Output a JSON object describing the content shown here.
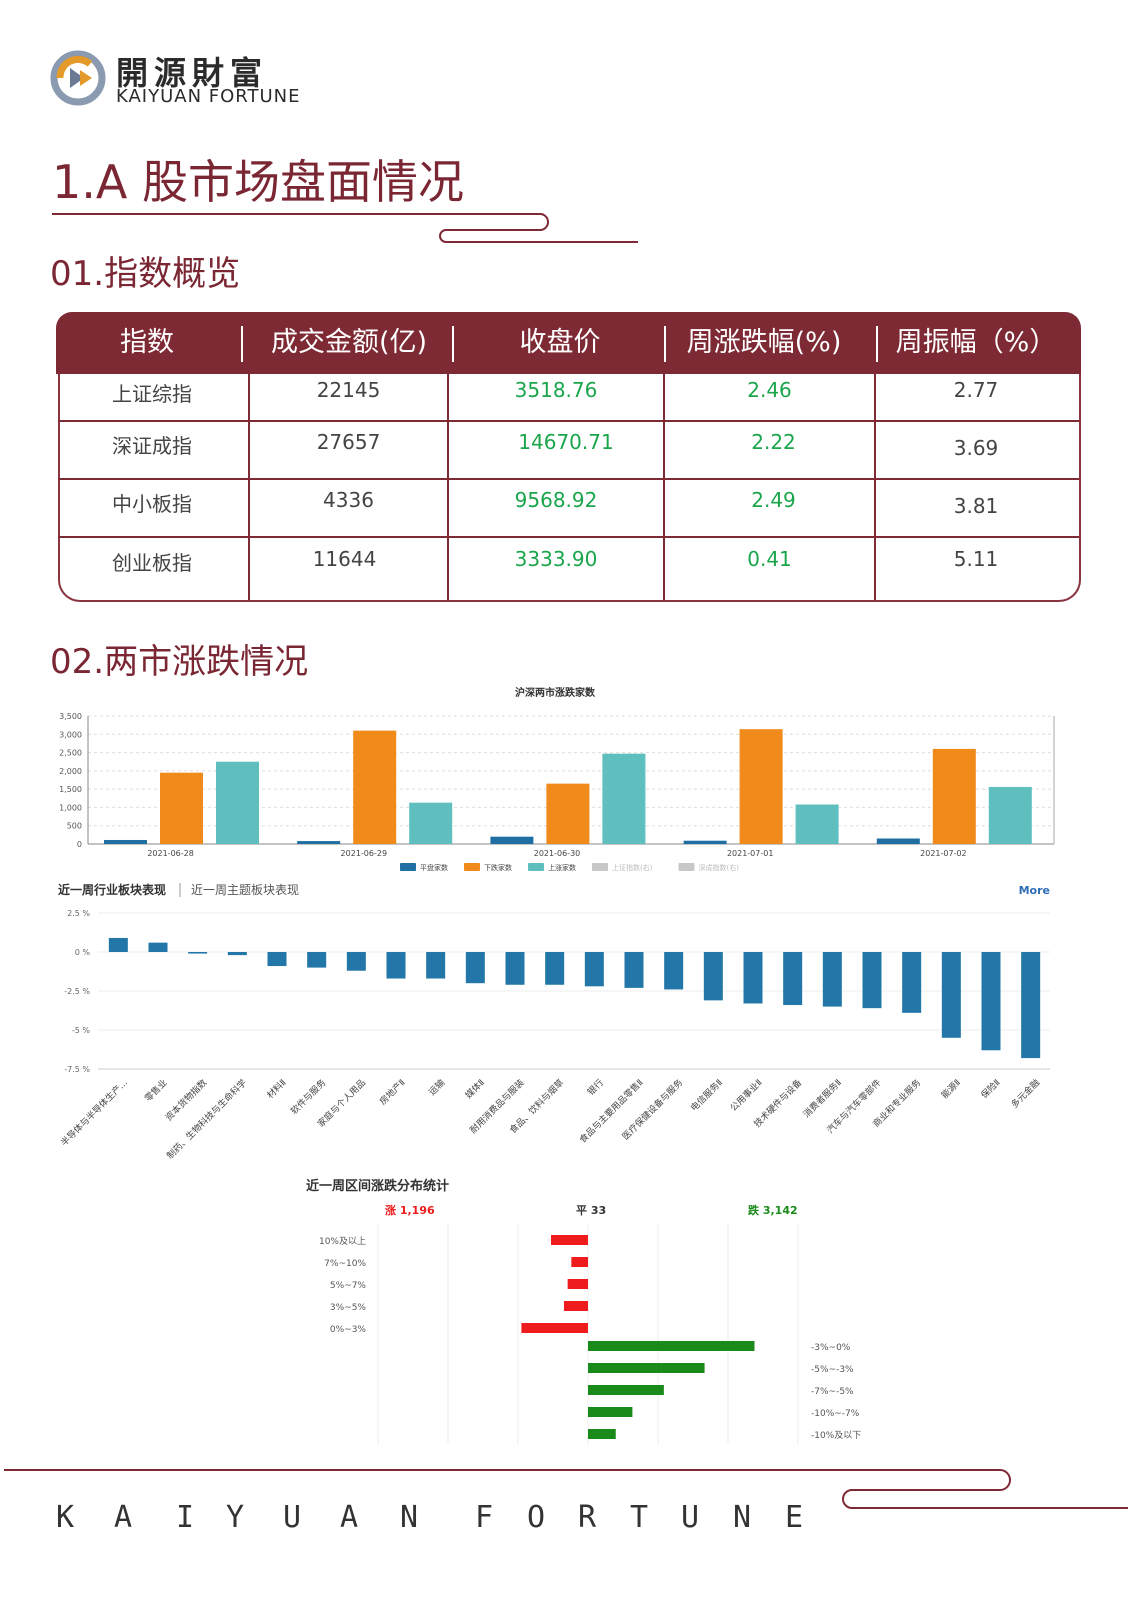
{
  "brand": {
    "name_cn": "開源財富",
    "name_en": "KAIYUAN FORTUNE",
    "footer_letters": [
      "K",
      "A",
      "I",
      "Y",
      "U",
      "A",
      "N",
      "F",
      "O",
      "R",
      "T",
      "U",
      "N",
      "E"
    ]
  },
  "section_title": "1.A 股市场盘面情况",
  "index_overview": {
    "title": "01.指数概览",
    "headers": [
      "指数",
      "成交金额(亿)",
      "收盘价",
      "周涨跌幅(%)",
      "周振幅（%）"
    ],
    "rows": [
      [
        "上证综指",
        "22145",
        "3518.76",
        "2.46",
        "2.77"
      ],
      [
        "深证成指",
        "27657",
        "14670.71",
        "2.22",
        "3.69"
      ],
      [
        "中小板指",
        "4336",
        "9568.92",
        "2.49",
        "3.81"
      ],
      [
        "创业板指",
        "11644",
        "3333.90",
        "0.41",
        "5.11"
      ]
    ]
  },
  "market_section_title": "02.两市涨跌情况",
  "colors": {
    "brand": "#7e2a35",
    "flat": "#1f6fa3",
    "down": "#f08a1b",
    "up": "#5fbfbf",
    "red": "#ee1c1c",
    "green": "#1a8a1a",
    "ind": "#2277a8"
  },
  "chart_data": [
    {
      "type": "bar",
      "title": "沪深两市涨跌家数",
      "categories": [
        "2021-06-28",
        "2021-06-29",
        "2021-06-30",
        "2021-07-01",
        "2021-07-02"
      ],
      "series": [
        {
          "name": "平盘家数",
          "values": [
            110,
            80,
            200,
            90,
            150
          ]
        },
        {
          "name": "下跌家数",
          "values": [
            1950,
            3100,
            1650,
            3140,
            2600
          ]
        },
        {
          "name": "上涨家数",
          "values": [
            2250,
            1130,
            2470,
            1080,
            1560
          ]
        }
      ],
      "legend_extra": [
        "上证指数(右)",
        "深成指数(右)"
      ],
      "ylim": [
        0,
        3500
      ],
      "yticks": [
        "0",
        "500",
        "1,000",
        "1,500",
        "2,000",
        "2,500",
        "3,000",
        "3,500"
      ],
      "legend": "bottom",
      "grid": true
    },
    {
      "type": "bar",
      "tab_active": "近一周行业板块表现",
      "tab_inactive": "近一周主题板块表现",
      "more": "More",
      "yticks": [
        "2.5 %",
        "0 %",
        "-2.5 %",
        "-5 %",
        "-7.5 %"
      ],
      "ylim": [
        -7.5,
        2.5
      ],
      "categories": [
        "半导体与半导体生产...",
        "零售业",
        "资本货物指数",
        "制药、生物科技与生命科学",
        "材料Ⅱ",
        "软件与服务",
        "家庭与个人用品",
        "房地产Ⅱ",
        "运输",
        "媒体Ⅱ",
        "耐用消费品与服装",
        "食品、饮料与烟草",
        "银行",
        "食品与主要用品零售Ⅱ",
        "医疗保健设备与服务",
        "电信服务Ⅱ",
        "公用事业Ⅱ",
        "技术硬件与设备",
        "消费者服务Ⅱ",
        "汽车与汽车零部件",
        "商业和专业服务",
        "能源Ⅱ",
        "保险Ⅱ",
        "多元金融"
      ],
      "values": [
        0.9,
        0.6,
        -0.1,
        -0.2,
        -0.9,
        -1.0,
        -1.2,
        -1.7,
        -1.7,
        -2.0,
        -2.1,
        -2.1,
        -2.2,
        -2.3,
        -2.4,
        -3.1,
        -3.3,
        -3.4,
        -3.5,
        -3.6,
        -3.9,
        -5.5,
        -6.3,
        -6.8
      ]
    },
    {
      "type": "bar",
      "title": "近一周区间涨跌分布统计",
      "summary": {
        "up": "涨 1,196",
        "flat": "平 33",
        "down": "跌 3,142"
      },
      "up_categories": [
        "10%及以上",
        "7%~10%",
        "5%~7%",
        "3%~5%",
        "0%~3%"
      ],
      "up_values": [
        100,
        45,
        55,
        65,
        180
      ],
      "down_categories": [
        "-3%~0%",
        "-5%~-3%",
        "-7%~-5%",
        "-10%~-7%",
        "-10%及以下"
      ],
      "down_values": [
        450,
        315,
        205,
        120,
        75
      ]
    }
  ]
}
